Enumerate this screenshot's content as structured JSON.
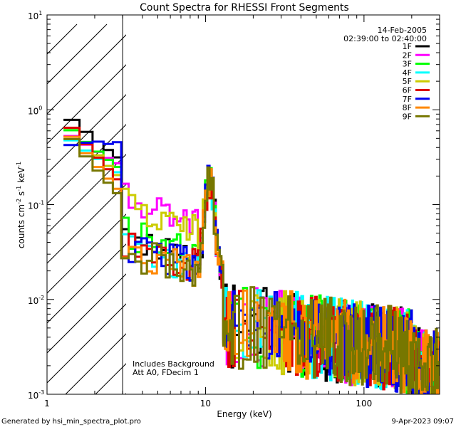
{
  "chart_data": {
    "type": "line",
    "title": "Count Spectra for RHESSI Front Segments",
    "xlabel": "Energy (keV)",
    "ylabel_parts": [
      "counts cm",
      "-2",
      " s",
      "-1",
      " keV",
      "-1"
    ],
    "x_scale": "log",
    "y_scale": "log",
    "xlim": [
      1,
      300
    ],
    "ylim": [
      0.001,
      10
    ],
    "x_ticks": [
      {
        "value": 1,
        "label": "1"
      },
      {
        "value": 10,
        "label": "10"
      },
      {
        "value": 100,
        "label": "100"
      }
    ],
    "y_ticks": [
      {
        "value": 0.001,
        "mant": "10",
        "exp": "-3"
      },
      {
        "value": 0.01,
        "mant": "10",
        "exp": "-2"
      },
      {
        "value": 0.1,
        "mant": "10",
        "exp": "-1"
      },
      {
        "value": 1,
        "mant": "10",
        "exp": "0"
      },
      {
        "value": 10,
        "mant": "10",
        "exp": "1"
      }
    ],
    "date_text": "14-Feb-2005",
    "time_range_text": "02:39:00 to 02:40:00",
    "notes": [
      "Includes Background",
      "Att A0, FDecim 1"
    ],
    "shaded_region": [
      1,
      3
    ],
    "footer_left": "Generated by hsi_min_spectra_plot.pro",
    "footer_right": "9-Apr-2023 09:07",
    "series": [
      {
        "name": "1F",
        "color": "#000000"
      },
      {
        "name": "2F",
        "color": "#ff00ff"
      },
      {
        "name": "3F",
        "color": "#00ff00"
      },
      {
        "name": "4F",
        "color": "#00ffff"
      },
      {
        "name": "5F",
        "color": "#cccc00"
      },
      {
        "name": "6F",
        "color": "#dd0000"
      },
      {
        "name": "7F",
        "color": "#0000ee"
      },
      {
        "name": "8F",
        "color": "#ff8800"
      },
      {
        "name": "9F",
        "color": "#777700"
      }
    ]
  }
}
